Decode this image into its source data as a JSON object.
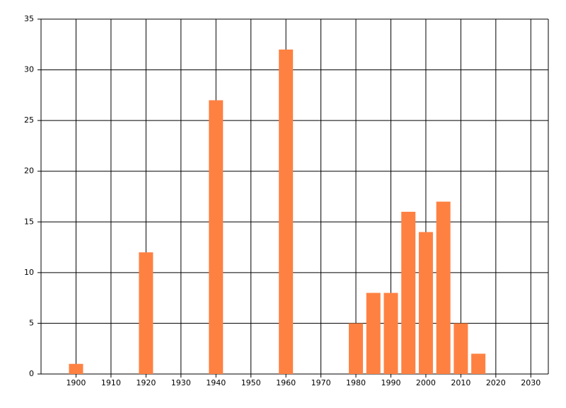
{
  "chart_data": {
    "type": "bar",
    "x": [
      1900,
      1920,
      1940,
      1960,
      1980,
      1985,
      1990,
      1995,
      2000,
      2005,
      2010,
      2015
    ],
    "values": [
      1,
      12,
      27,
      32,
      5,
      8,
      8,
      16,
      14,
      17,
      5,
      2
    ],
    "color": "#ff8142",
    "xlim": [
      1890,
      2035
    ],
    "xticks": [
      1900,
      1910,
      1920,
      1930,
      1940,
      1950,
      1960,
      1970,
      1980,
      1990,
      2000,
      2010,
      2020,
      2030
    ],
    "ylim": [
      0,
      35
    ],
    "yticks": [
      0,
      5,
      10,
      15,
      20,
      25,
      30,
      35
    ],
    "grid": true
  }
}
